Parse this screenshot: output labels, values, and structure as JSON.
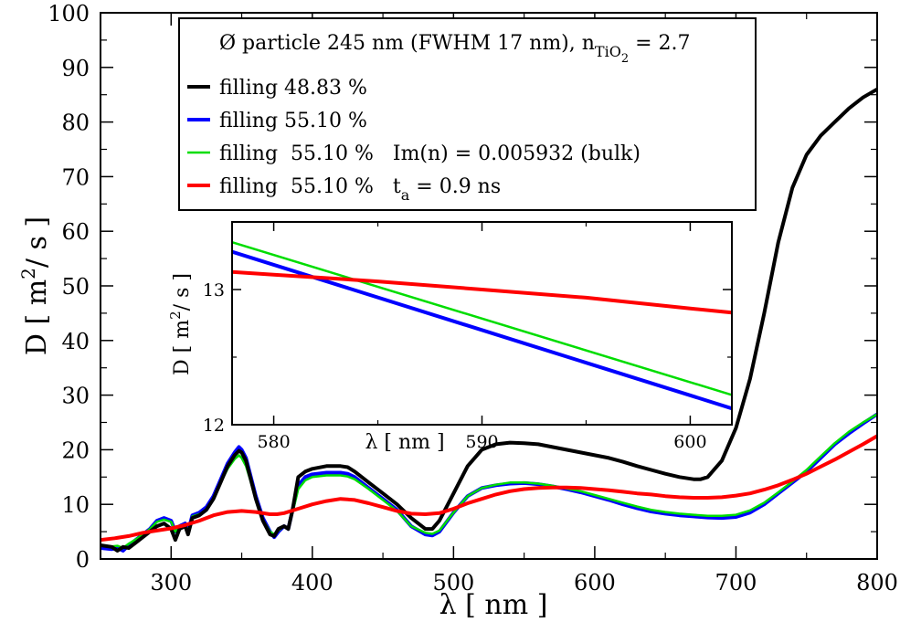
{
  "chart_data": [
    {
      "type": "line",
      "id": "main",
      "title": "",
      "xlabel": "λ   [ nm ]",
      "ylabel": "D   [ m²/ s ]",
      "xlim": [
        250,
        800
      ],
      "ylim": [
        0,
        100
      ],
      "xticks": [
        300,
        400,
        500,
        600,
        700,
        800
      ],
      "yticks": [
        0,
        10,
        20,
        30,
        40,
        50,
        60,
        70,
        80,
        90,
        100
      ],
      "legend": {
        "position": "top-center",
        "title": "Ø particle 245 nm (FWHM 17 nm), n",
        "title_sub": "TiO",
        "title_subsub": "2",
        "title_suffix": " = 2.7",
        "entries": [
          {
            "text": "filling  48.83 %"
          },
          {
            "text": "filling  55.10 %"
          },
          {
            "text": "filling  55.10 %   Im(n) = 0.005932 (bulk)"
          },
          {
            "text": "filling  55.10 %   t",
            "sub": "a",
            "suffix": " = 0.9 ns"
          }
        ]
      },
      "series": [
        {
          "name": "filling 48.83 %",
          "color": "#000000",
          "x": [
            250,
            258,
            262,
            266,
            270,
            275,
            280,
            285,
            290,
            295,
            300,
            303,
            306,
            310,
            312,
            315,
            320,
            325,
            330,
            335,
            340,
            345,
            348,
            350,
            353,
            356,
            360,
            365,
            370,
            373,
            376,
            380,
            383,
            386,
            390,
            395,
            400,
            410,
            420,
            425,
            430,
            440,
            450,
            460,
            470,
            480,
            485,
            490,
            500,
            510,
            520,
            530,
            540,
            550,
            560,
            570,
            580,
            590,
            600,
            610,
            620,
            630,
            640,
            650,
            660,
            670,
            675,
            680,
            690,
            700,
            710,
            720,
            730,
            740,
            750,
            760,
            770,
            780,
            790,
            800
          ],
          "y": [
            2.5,
            2.2,
            1.5,
            2.2,
            2.0,
            3.0,
            4.0,
            5.0,
            6.0,
            6.5,
            5.5,
            3.5,
            5.5,
            6.0,
            4.5,
            7.5,
            8.0,
            9.0,
            11.0,
            14.0,
            17.0,
            19.0,
            19.8,
            19.5,
            18.0,
            15.0,
            11.0,
            7.0,
            4.5,
            4.2,
            5.5,
            6.0,
            5.5,
            9.0,
            15.0,
            16.0,
            16.5,
            17.0,
            17.0,
            16.8,
            16.0,
            14.0,
            12.0,
            10.0,
            7.5,
            5.5,
            5.5,
            7.0,
            12.0,
            17.0,
            20.0,
            21.0,
            21.3,
            21.2,
            21.0,
            20.5,
            20.0,
            19.5,
            19.0,
            18.5,
            17.8,
            17.0,
            16.3,
            15.6,
            15.0,
            14.6,
            14.6,
            15.0,
            18.0,
            24.0,
            33.0,
            45.0,
            58.0,
            68.0,
            74.0,
            77.5,
            80.0,
            82.5,
            84.5,
            86.0
          ]
        },
        {
          "name": "filling 55.10 %",
          "color": "#0000ff",
          "x": [
            250,
            258,
            262,
            266,
            270,
            275,
            280,
            285,
            290,
            295,
            300,
            303,
            306,
            310,
            312,
            315,
            320,
            325,
            330,
            335,
            340,
            345,
            348,
            350,
            353,
            356,
            360,
            365,
            370,
            373,
            376,
            380,
            383,
            386,
            390,
            395,
            400,
            410,
            420,
            425,
            430,
            440,
            450,
            460,
            470,
            480,
            485,
            490,
            500,
            510,
            520,
            530,
            540,
            550,
            560,
            570,
            580,
            590,
            600,
            610,
            620,
            630,
            640,
            650,
            660,
            670,
            680,
            690,
            700,
            710,
            720,
            730,
            740,
            750,
            760,
            770,
            780,
            790,
            800
          ],
          "y": [
            2.0,
            1.8,
            2.0,
            1.5,
            2.5,
            3.5,
            4.5,
            5.5,
            7.0,
            7.5,
            7.0,
            5.0,
            6.0,
            6.5,
            5.0,
            8.0,
            8.5,
            9.5,
            11.5,
            14.5,
            17.5,
            19.5,
            20.5,
            20.0,
            18.5,
            15.5,
            11.5,
            7.5,
            5.0,
            4.0,
            5.0,
            6.0,
            5.5,
            9.0,
            13.5,
            15.0,
            15.5,
            15.8,
            15.8,
            15.6,
            15.0,
            13.0,
            11.0,
            9.0,
            6.0,
            4.5,
            4.3,
            5.0,
            8.5,
            11.5,
            13.0,
            13.5,
            13.8,
            13.9,
            13.7,
            13.3,
            12.8,
            12.2,
            11.5,
            10.8,
            10.0,
            9.3,
            8.7,
            8.3,
            8.0,
            7.8,
            7.6,
            7.5,
            7.7,
            8.5,
            10.0,
            12.0,
            14.0,
            16.0,
            18.5,
            21.0,
            23.0,
            24.8,
            26.5
          ]
        },
        {
          "name": "filling 55.10 % Im(n) = 0.005932 (bulk)",
          "color": "#00dd00",
          "x": [
            250,
            258,
            262,
            266,
            270,
            275,
            280,
            285,
            290,
            295,
            300,
            303,
            306,
            310,
            312,
            315,
            320,
            325,
            330,
            335,
            340,
            345,
            348,
            350,
            353,
            356,
            360,
            365,
            370,
            373,
            376,
            380,
            383,
            386,
            390,
            395,
            400,
            410,
            420,
            425,
            430,
            440,
            450,
            460,
            470,
            480,
            485,
            490,
            500,
            510,
            520,
            530,
            540,
            550,
            560,
            570,
            580,
            590,
            600,
            610,
            620,
            630,
            640,
            650,
            660,
            670,
            680,
            690,
            700,
            710,
            720,
            730,
            740,
            750,
            760,
            770,
            780,
            790,
            800
          ],
          "y": [
            2.5,
            2.3,
            2.4,
            2.0,
            2.8,
            3.6,
            4.5,
            5.5,
            6.8,
            7.2,
            6.8,
            5.0,
            5.8,
            6.3,
            5.0,
            7.8,
            8.2,
            9.0,
            11.0,
            14.0,
            16.5,
            18.3,
            19.0,
            18.5,
            17.0,
            14.5,
            10.8,
            7.2,
            5.0,
            4.5,
            5.2,
            6.0,
            5.5,
            8.5,
            12.8,
            14.4,
            15.0,
            15.3,
            15.3,
            15.1,
            14.6,
            12.8,
            10.8,
            8.8,
            6.0,
            4.8,
            4.6,
            5.2,
            8.5,
            11.5,
            13.0,
            13.6,
            14.0,
            14.0,
            13.8,
            13.4,
            12.9,
            12.4,
            11.7,
            11.0,
            10.3,
            9.6,
            9.0,
            8.6,
            8.3,
            8.1,
            7.9,
            7.9,
            8.1,
            8.9,
            10.3,
            12.2,
            14.2,
            16.3,
            18.8,
            21.2,
            23.3,
            25.0,
            26.5
          ]
        },
        {
          "name": "filling 55.10 % t_a = 0.9 ns",
          "color": "#ff0000",
          "x": [
            250,
            260,
            270,
            280,
            290,
            300,
            310,
            320,
            330,
            340,
            350,
            360,
            370,
            375,
            380,
            390,
            400,
            410,
            420,
            430,
            440,
            450,
            460,
            470,
            480,
            490,
            500,
            510,
            520,
            530,
            540,
            550,
            560,
            570,
            580,
            590,
            600,
            610,
            620,
            630,
            640,
            650,
            660,
            670,
            680,
            690,
            700,
            710,
            720,
            730,
            740,
            750,
            760,
            770,
            780,
            790,
            800
          ],
          "y": [
            3.5,
            3.8,
            4.2,
            4.8,
            5.2,
            5.6,
            6.2,
            7.0,
            8.0,
            8.6,
            8.8,
            8.6,
            8.2,
            8.2,
            8.4,
            9.2,
            10.0,
            10.6,
            11.0,
            10.8,
            10.2,
            9.5,
            8.8,
            8.3,
            8.2,
            8.4,
            9.2,
            10.2,
            11.0,
            11.8,
            12.4,
            12.8,
            13.0,
            13.1,
            13.1,
            13.0,
            12.8,
            12.6,
            12.3,
            12.0,
            11.8,
            11.5,
            11.3,
            11.2,
            11.2,
            11.3,
            11.6,
            12.0,
            12.7,
            13.5,
            14.5,
            15.6,
            16.9,
            18.2,
            19.6,
            21.0,
            22.5
          ]
        }
      ]
    },
    {
      "type": "line",
      "id": "inset",
      "xlabel": "λ    [ nm ]",
      "ylabel": "D    [ m²/ s ]",
      "xlim": [
        578,
        602
      ],
      "ylim": [
        12,
        13.5
      ],
      "xticks": [
        580,
        590,
        600
      ],
      "yticks": [
        12,
        13
      ],
      "series": [
        {
          "name": "filling 55.10 %",
          "color": "#0000ff",
          "x": [
            578,
            602
          ],
          "y": [
            13.28,
            12.12
          ]
        },
        {
          "name": "filling 55.10 % Im(n) = 0.005932 (bulk)",
          "color": "#00dd00",
          "x": [
            578,
            602
          ],
          "y": [
            13.35,
            12.22
          ]
        },
        {
          "name": "filling 55.10 % t_a = 0.9 ns",
          "color": "#ff0000",
          "x": [
            578,
            580,
            585,
            590,
            595,
            600,
            602
          ],
          "y": [
            13.13,
            13.11,
            13.06,
            13.0,
            12.94,
            12.86,
            12.83
          ]
        }
      ]
    }
  ]
}
